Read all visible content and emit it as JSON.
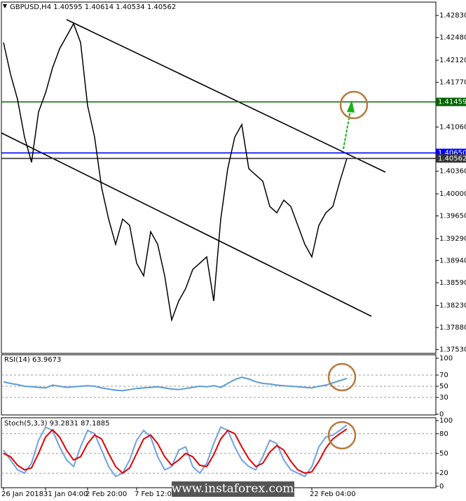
{
  "chart_data": [
    {
      "type": "line",
      "title": "GBPUSD,H4  1.40595 1.40614 1.40534 1.40562",
      "color": "#000000",
      "categories": [
        "26 Jan 2018",
        null,
        null,
        null,
        null,
        null,
        "31 Jan 04:00",
        null,
        null,
        null,
        null,
        null,
        "2 Feb 20:00",
        null,
        null,
        null,
        null,
        null,
        null,
        "7 Feb 12:00",
        null,
        null,
        null,
        null,
        null,
        null,
        null,
        null,
        null,
        null,
        null,
        null,
        null,
        null,
        null,
        null,
        null,
        null,
        null,
        null,
        null,
        null,
        null,
        null,
        "22 Feb 04:00",
        null,
        null,
        null,
        null,
        null
      ],
      "values": [
        1.424,
        1.419,
        1.415,
        1.409,
        1.405,
        1.413,
        1.416,
        1.42,
        1.423,
        1.425,
        1.427,
        1.424,
        1.414,
        1.409,
        1.401,
        1.396,
        1.392,
        1.396,
        1.395,
        1.389,
        1.387,
        1.394,
        1.392,
        1.387,
        1.38,
        1.383,
        1.385,
        1.388,
        1.389,
        1.39,
        1.383,
        1.396,
        1.404,
        1.409,
        1.411,
        1.404,
        1.403,
        1.402,
        1.398,
        1.397,
        1.399,
        1.398,
        1.395,
        1.392,
        1.39,
        1.395,
        1.397,
        1.398,
        1.402,
        1.40562
      ],
      "ylim": [
        1.3747,
        1.4302
      ],
      "yticks": [
        {
          "value": 1.4283,
          "label": "1.42830"
        },
        {
          "value": 1.4248,
          "label": "1.42480"
        },
        {
          "value": 1.4212,
          "label": "1.42120"
        },
        {
          "value": 1.4177,
          "label": "1.41770"
        },
        {
          "value": 1.4106,
          "label": "1.41060"
        },
        {
          "value": 1.4036,
          "label": "1.40360"
        },
        {
          "value": 1.4,
          "label": "1.40000"
        },
        {
          "value": 1.3965,
          "label": "1.39650"
        },
        {
          "value": 1.3929,
          "label": "1.39290"
        },
        {
          "value": 1.3894,
          "label": "1.38940"
        },
        {
          "value": 1.3859,
          "label": "1.38590"
        },
        {
          "value": 1.3823,
          "label": "1.38230"
        },
        {
          "value": 1.3788,
          "label": "1.37880"
        },
        {
          "value": 1.3753,
          "label": "1.37530"
        }
      ],
      "levels": [
        {
          "value": 1.41459,
          "color": "#006400"
        },
        {
          "value": 1.4065,
          "label": "1.40650",
          "color": "#0000ff"
        },
        {
          "value": 1.40562,
          "label": "1.40562",
          "color": "#333333"
        }
      ],
      "watermark": "www.instaforex.com"
    },
    {
      "type": "line",
      "title": "RSI(14) 63.9673",
      "color": "#5b9bd5",
      "values": [
        58,
        55,
        53,
        50,
        49,
        48,
        47,
        52,
        50,
        48,
        49,
        50,
        51,
        50,
        47,
        45,
        43,
        42,
        44,
        46,
        47,
        48,
        49,
        47,
        45,
        44,
        46,
        48,
        50,
        49,
        51,
        48,
        55,
        62,
        66,
        63,
        58,
        55,
        54,
        52,
        51,
        50,
        49,
        48,
        47,
        50,
        52,
        56,
        60,
        63.9673
      ],
      "ylim": [
        0,
        100
      ],
      "yticks": [
        0,
        30,
        50,
        70,
        100
      ]
    },
    {
      "type": "line",
      "title": "Stoch(5,3,3) 93.2831 87.1885",
      "series": [
        {
          "color": "#6fa0e6",
          "values": [
            55,
            40,
            25,
            20,
            35,
            70,
            90,
            85,
            60,
            40,
            30,
            60,
            85,
            80,
            55,
            30,
            15,
            20,
            40,
            70,
            85,
            75,
            45,
            25,
            30,
            55,
            60,
            30,
            20,
            35,
            65,
            90,
            85,
            60,
            40,
            30,
            25,
            45,
            70,
            65,
            40,
            25,
            20,
            15,
            30,
            60,
            75,
            78,
            85,
            93.2831
          ]
        },
        {
          "color": "#e00000",
          "values": [
            50,
            45,
            32,
            25,
            28,
            50,
            75,
            86,
            75,
            55,
            40,
            45,
            65,
            78,
            72,
            50,
            30,
            20,
            28,
            50,
            72,
            78,
            65,
            45,
            32,
            40,
            50,
            45,
            32,
            30,
            48,
            72,
            85,
            80,
            60,
            42,
            30,
            35,
            52,
            62,
            55,
            38,
            25,
            20,
            22,
            38,
            58,
            72,
            80,
            87.1885
          ]
        }
      ],
      "ylim": [
        0,
        100
      ],
      "yticks": [
        0,
        20,
        50,
        80,
        100
      ]
    }
  ]
}
